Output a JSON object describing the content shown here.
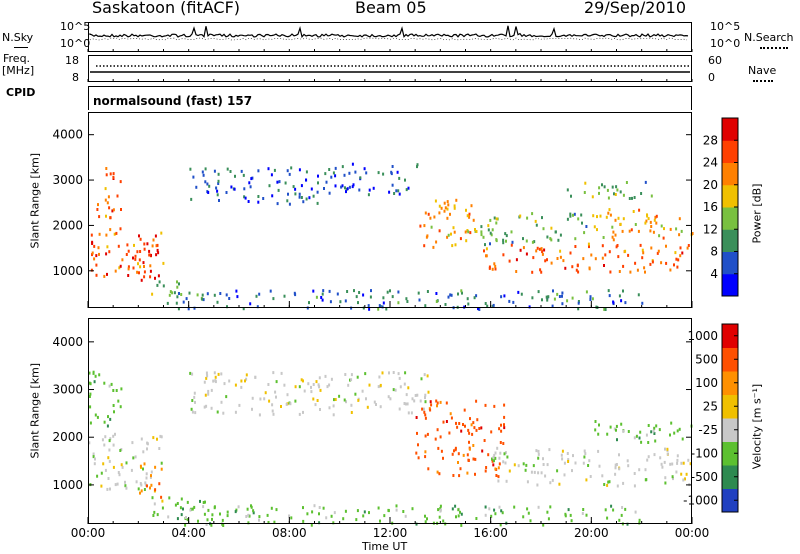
{
  "header": {
    "station": "Saskatoon (fitACF)",
    "beam": "Beam 05",
    "date": "29/Sep/2010"
  },
  "side_labels": {
    "nsky": "N.Sky",
    "freq": "Freq.",
    "freq_unit": "[MHz]",
    "cpid": "CPID",
    "nsearch": "N.Search",
    "nave": "Nave",
    "cpid_value": "normalsound (fast) 157"
  },
  "strip_ticks": {
    "noise_left": [
      "10^5",
      "10^0"
    ],
    "noise_right": [
      "10^5",
      "10^0"
    ],
    "freq_left": [
      "18",
      "8"
    ],
    "freq_right": [
      "60",
      "0"
    ]
  },
  "chart_data": [
    {
      "type": "heatmap",
      "name": "power",
      "ylabel": "Slant Range [km]",
      "ylim": [
        180,
        4500
      ],
      "yticks": [
        "1000",
        "2000",
        "3000",
        "4000"
      ],
      "xlim": [
        "00:00",
        "24:00"
      ],
      "colorbar_label": "Power [dB]",
      "colorbar_ticks": [
        "4",
        "8",
        "12",
        "16",
        "20",
        "24",
        "28"
      ],
      "colorbar_colors": [
        "#0000ff",
        "#2050c8",
        "#3a8f5a",
        "#79c040",
        "#f0c000",
        "#ff8000",
        "#ff4000",
        "#e00000"
      ],
      "regions": [
        {
          "t0": 0.3,
          "t1": 1.3,
          "r0": 2200,
          "r1": 3400,
          "level": 24
        },
        {
          "t0": 0.0,
          "t1": 3.0,
          "r0": 900,
          "r1": 2000,
          "level": 24
        },
        {
          "t0": 1.5,
          "t1": 2.8,
          "r0": 800,
          "r1": 1500,
          "level": 28
        },
        {
          "t0": 2.5,
          "t1": 4.5,
          "r0": 300,
          "r1": 800,
          "level": 12
        },
        {
          "t0": 4.0,
          "t1": 9.5,
          "r0": 2500,
          "r1": 3300,
          "level": 6
        },
        {
          "t0": 9.5,
          "t1": 13.2,
          "r0": 2700,
          "r1": 3400,
          "level": 6
        },
        {
          "t0": 13.0,
          "t1": 15.5,
          "r0": 1500,
          "r1": 2600,
          "level": 20
        },
        {
          "t0": 15.5,
          "t1": 24.0,
          "r0": 1000,
          "r1": 1600,
          "level": 24
        },
        {
          "t0": 15.5,
          "t1": 20.0,
          "r0": 1600,
          "r1": 2300,
          "level": 12
        },
        {
          "t0": 20.0,
          "t1": 24.0,
          "r0": 1700,
          "r1": 2400,
          "level": 20
        },
        {
          "t0": 3.5,
          "t1": 22.0,
          "r0": 180,
          "r1": 600,
          "level": 8
        },
        {
          "t0": 19.0,
          "t1": 22.5,
          "r0": 2600,
          "r1": 3000,
          "level": 12
        }
      ]
    },
    {
      "type": "heatmap",
      "name": "velocity",
      "ylabel": "Slant Range [km]",
      "ylim": [
        180,
        4500
      ],
      "yticks": [
        "1000",
        "2000",
        "3000",
        "4000"
      ],
      "xlim": [
        "00:00",
        "24:00"
      ],
      "xticks": [
        "00:00",
        "04:00",
        "08:00",
        "12:00",
        "16:00",
        "20:00",
        "00:00"
      ],
      "xlabel": "Time UT",
      "colorbar_label": "Velocity [m s⁻¹]",
      "colorbar_ticks": [
        "1000",
        "500",
        "100",
        "25",
        "-25",
        "-100",
        "-500",
        "-1000"
      ],
      "colorbar_colors": [
        "#2040c0",
        "#2e8a50",
        "#5cc030",
        "#c8c8c8",
        "#f0c000",
        "#ff9000",
        "#ff5000",
        "#e00000"
      ],
      "regions": [
        {
          "t0": 0.0,
          "t1": 1.3,
          "r0": 2200,
          "r1": 3400,
          "color": 2
        },
        {
          "t0": 0.0,
          "t1": 3.0,
          "r0": 900,
          "r1": 2100,
          "color": 3
        },
        {
          "t0": 2.0,
          "t1": 3.0,
          "r0": 600,
          "r1": 1500,
          "color": 5
        },
        {
          "t0": 2.5,
          "t1": 5.0,
          "r0": 300,
          "r1": 800,
          "color": 2
        },
        {
          "t0": 4.0,
          "t1": 13.5,
          "r0": 2500,
          "r1": 3400,
          "color": 3
        },
        {
          "t0": 13.0,
          "t1": 16.5,
          "r0": 1200,
          "r1": 2800,
          "color": 6
        },
        {
          "t0": 16.0,
          "t1": 24.0,
          "r0": 1000,
          "r1": 1800,
          "color": 3
        },
        {
          "t0": 20.0,
          "t1": 24.0,
          "r0": 1900,
          "r1": 2400,
          "color": 2
        },
        {
          "t0": 3.5,
          "t1": 22.0,
          "r0": 180,
          "r1": 600,
          "color": 2
        }
      ]
    }
  ]
}
